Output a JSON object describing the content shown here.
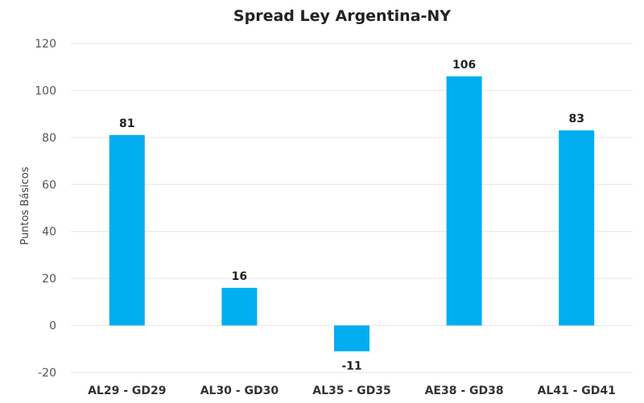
{
  "chart_data": {
    "type": "bar",
    "title": "Spread Ley Argentina-NY",
    "xlabel": "",
    "ylabel": "Puntos Básicos",
    "categories": [
      "AL29 - GD29",
      "AL30 - GD30",
      "AL35 - GD35",
      "AE38 - GD38",
      "AL41 - GD41"
    ],
    "values": [
      81,
      16,
      -11,
      106,
      83
    ],
    "data_labels": [
      "81",
      "16",
      "-11",
      "106",
      "83"
    ],
    "ylim": [
      -20,
      120
    ],
    "yticks": [
      -20,
      0,
      20,
      40,
      60,
      80,
      100,
      120
    ],
    "ytick_labels": [
      "-20",
      "0",
      "20",
      "40",
      "60",
      "80",
      "100",
      "120"
    ],
    "grid": true,
    "legend": "none",
    "bar_color": "#00aeef"
  }
}
